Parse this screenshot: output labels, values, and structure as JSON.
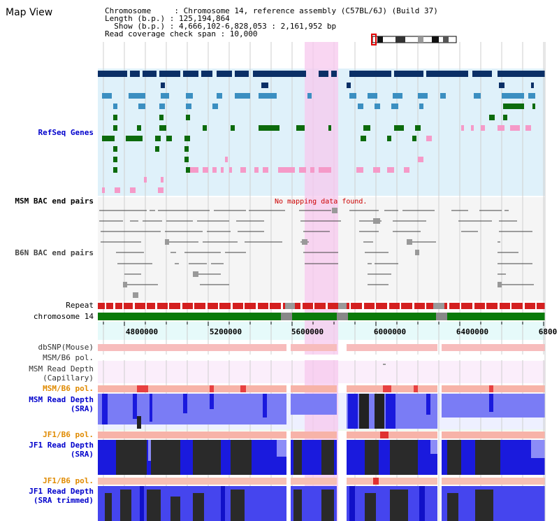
{
  "title": "Map View",
  "info": {
    "line1": "Chromosome     : Chromosome 14, reference assembly (C57BL/6J) (Build 37)",
    "line2": "Length (b.p.) : 125,194,864",
    "line3": "  Show (b.p.) : 4,666,102-6,828,053 : 2,161,952 bp",
    "line4": "Read coverage check span : 10,000"
  },
  "tracks": {
    "refseq": "RefSeq Genes",
    "msm_bac": "MSM BAC end pairs",
    "b6n_bac": "B6N BAC end pairs",
    "repeat": "Repeat",
    "chromosome": "chromosome 14",
    "dbsnp": "dbSNP(Mouse)",
    "msm_b6_pol_top": "MSM/B6 pol.",
    "msm_cap_1": "MSM Read Depth",
    "msm_cap_2": "(Capillary)",
    "msm_b6_pol": "MSM/B6 pol.",
    "msm_sra_1": "MSM Read Depth",
    "msm_sra_2": "(SRA)",
    "jf1_b6_pol_1": "JF1/B6 pol.",
    "jf1_sra_1": "JF1 Read Depth",
    "jf1_sra_2": "(SRA)",
    "jf1_b6_pol_2": "JF1/B6 pol.",
    "jf1_trim_1": "JF1 Read Depth",
    "jf1_trim_2": "(SRA trimmed)"
  },
  "no_mapping": "No mapping data found.",
  "axis": {
    "ticks": [
      "4800000",
      "5200000",
      "5600000",
      "6000000",
      "6400000",
      "6800"
    ]
  },
  "colors": {
    "gene_navy": "#0b2f66",
    "gene_teal": "#3b8fc1",
    "gene_green": "#0c6b0c",
    "gene_pink": "#f08cc0",
    "highlight": "#f7c8ee",
    "repeat_red": "#d42020",
    "chrom_green": "#0a7a0a"
  }
}
